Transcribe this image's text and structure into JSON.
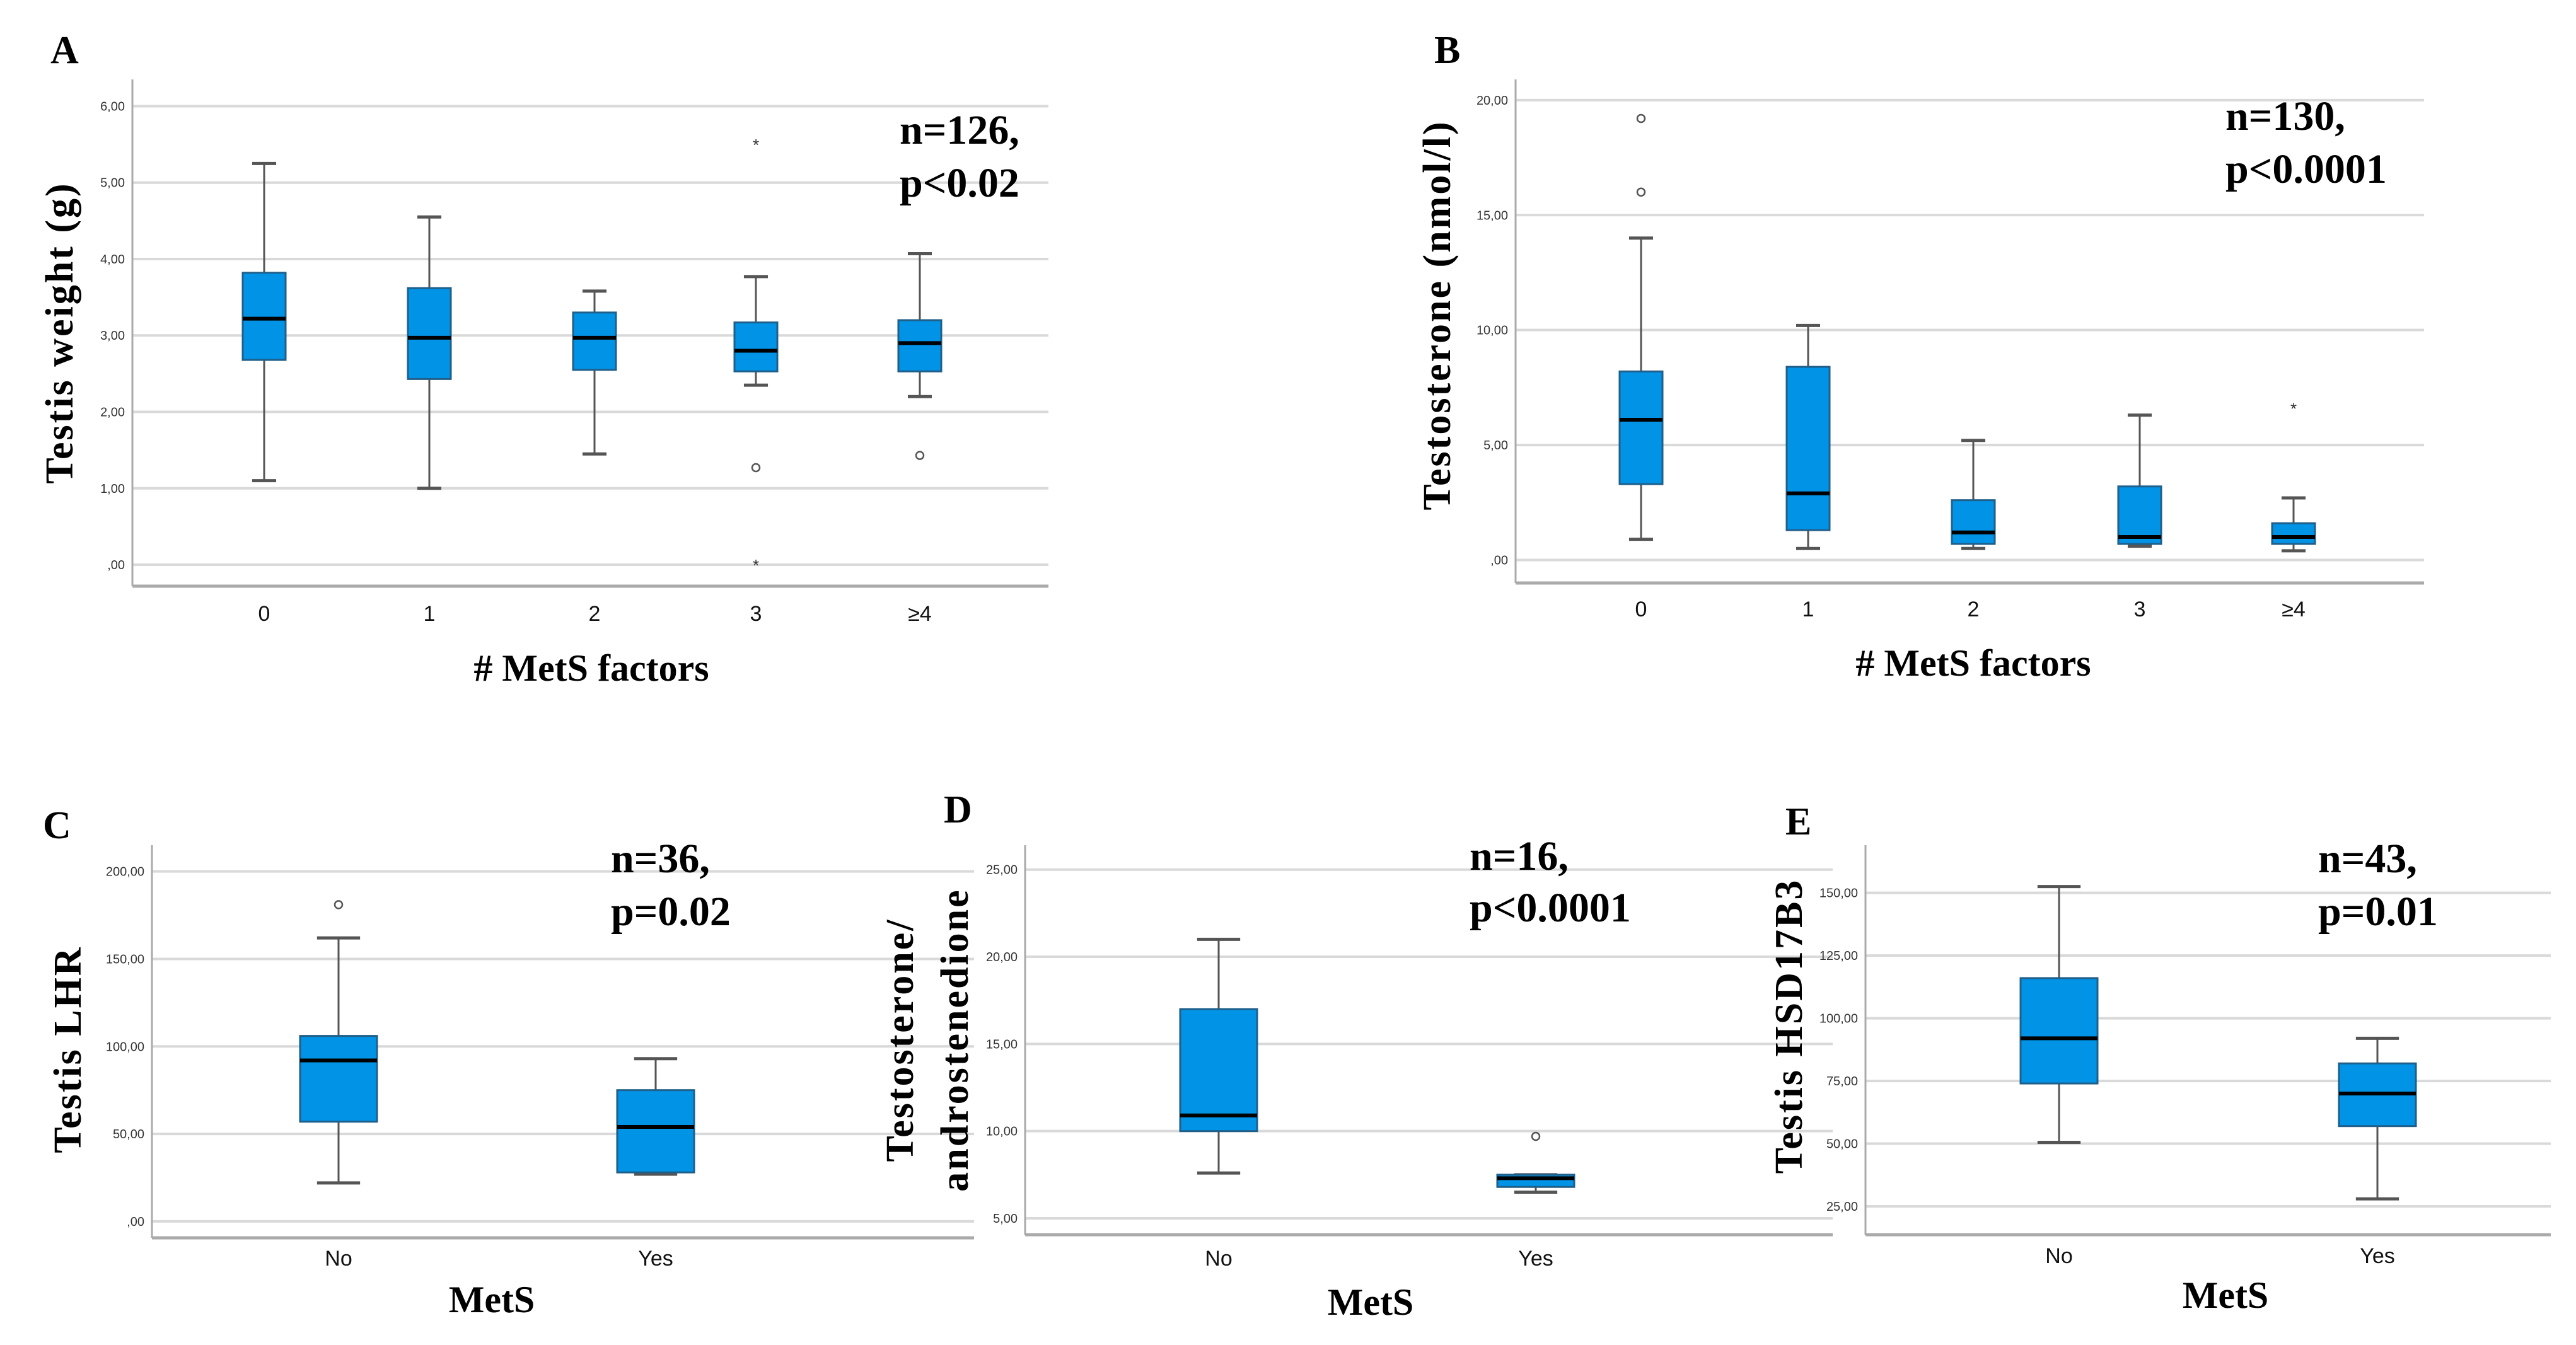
{
  "chart_data": [
    {
      "type": "box",
      "panel": "A",
      "ylabel": "Testis weight (g)",
      "xlabel": "# MetS factors",
      "annotation": [
        "n=126,",
        "p<0.02"
      ],
      "ylim": [
        -0.28,
        6.35
      ],
      "yticks": [
        {
          "v": 6,
          "t": "6,00"
        },
        {
          "v": 5,
          "t": "5,00"
        },
        {
          "v": 4,
          "t": "4,00"
        },
        {
          "v": 3,
          "t": "3,00"
        },
        {
          "v": 2,
          "t": "2,00"
        },
        {
          "v": 1,
          "t": "1,00"
        },
        {
          "v": 0,
          "t": ",00"
        }
      ],
      "categories": [
        "0",
        "1",
        "2",
        "3",
        "≥4"
      ],
      "boxes": [
        {
          "min": 1.1,
          "q1": 2.68,
          "median": 3.22,
          "q3": 3.82,
          "max": 5.25,
          "outliers": [],
          "extremes": []
        },
        {
          "min": 1.0,
          "q1": 2.43,
          "median": 2.97,
          "q3": 3.62,
          "max": 4.55,
          "outliers": [],
          "extremes": []
        },
        {
          "min": 1.45,
          "q1": 2.55,
          "median": 2.97,
          "q3": 3.3,
          "max": 3.58,
          "outliers": [],
          "extremes": []
        },
        {
          "min": 2.35,
          "q1": 2.53,
          "median": 2.8,
          "q3": 3.17,
          "max": 3.77,
          "outliers": [
            1.27
          ],
          "extremes": [
            5.5,
            0.0
          ]
        },
        {
          "min": 2.2,
          "q1": 2.53,
          "median": 2.9,
          "q3": 3.2,
          "max": 4.07,
          "outliers": [
            1.43
          ],
          "extremes": []
        }
      ]
    },
    {
      "type": "box",
      "panel": "B",
      "ylabel": "Testosterone (nmol/l)",
      "xlabel": "# MetS factors",
      "annotation": [
        "n=130,",
        "p<0.0001"
      ],
      "ylim": [
        -1.0,
        20.9
      ],
      "yticks": [
        {
          "v": 20,
          "t": "20,00"
        },
        {
          "v": 15,
          "t": "15,00"
        },
        {
          "v": 10,
          "t": "10,00"
        },
        {
          "v": 5,
          "t": "5,00"
        },
        {
          "v": 0,
          "t": ",00"
        }
      ],
      "categories": [
        "0",
        "1",
        "2",
        "3",
        "≥4"
      ],
      "boxes": [
        {
          "min": 0.9,
          "q1": 3.3,
          "median": 6.1,
          "q3": 8.2,
          "max": 14.0,
          "outliers": [
            19.2,
            16.0
          ],
          "extremes": []
        },
        {
          "min": 0.5,
          "q1": 1.3,
          "median": 2.9,
          "q3": 8.4,
          "max": 10.2,
          "outliers": [],
          "extremes": []
        },
        {
          "min": 0.5,
          "q1": 0.7,
          "median": 1.2,
          "q3": 2.6,
          "max": 5.2,
          "outliers": [],
          "extremes": []
        },
        {
          "min": 0.6,
          "q1": 0.7,
          "median": 1.0,
          "q3": 3.2,
          "max": 6.3,
          "outliers": [],
          "extremes": []
        },
        {
          "min": 0.4,
          "q1": 0.7,
          "median": 1.0,
          "q3": 1.6,
          "max": 2.7,
          "outliers": [],
          "extremes": [
            6.6
          ]
        }
      ]
    },
    {
      "type": "box",
      "panel": "C",
      "ylabel": "Testis LHR",
      "xlabel": "MetS",
      "annotation": [
        "n=36,",
        "p=0.02"
      ],
      "ylim": [
        -9.4,
        215
      ],
      "yticks": [
        {
          "v": 200,
          "t": "200,00"
        },
        {
          "v": 150,
          "t": "150,00"
        },
        {
          "v": 100,
          "t": "100,00"
        },
        {
          "v": 50,
          "t": "50,00"
        },
        {
          "v": 0,
          "t": ",00"
        }
      ],
      "categories": [
        "No",
        "Yes"
      ],
      "boxes": [
        {
          "min": 22,
          "q1": 57,
          "median": 92,
          "q3": 106,
          "max": 162,
          "outliers": [
            181
          ],
          "extremes": []
        },
        {
          "min": 27,
          "q1": 28,
          "median": 54,
          "q3": 75,
          "max": 93,
          "outliers": [],
          "extremes": []
        }
      ]
    },
    {
      "type": "box",
      "panel": "D",
      "ylabel": [
        "Testosterone/",
        "androstenedione"
      ],
      "xlabel": "MetS",
      "annotation": [
        "n=16,",
        "p<0.0001"
      ],
      "ylim": [
        4.06,
        26.4
      ],
      "yticks": [
        {
          "v": 25,
          "t": "25,00"
        },
        {
          "v": 20,
          "t": "20,00"
        },
        {
          "v": 15,
          "t": "15,00"
        },
        {
          "v": 10,
          "t": "10,00"
        },
        {
          "v": 5,
          "t": "5,00"
        }
      ],
      "categories": [
        "No",
        "Yes"
      ],
      "boxes": [
        {
          "min": 7.6,
          "q1": 10.0,
          "median": 10.9,
          "q3": 17.0,
          "max": 21.0,
          "outliers": [],
          "extremes": []
        },
        {
          "min": 6.5,
          "q1": 6.8,
          "median": 7.3,
          "q3": 7.5,
          "max": 7.5,
          "outliers": [
            9.7
          ],
          "extremes": []
        }
      ]
    },
    {
      "type": "box",
      "panel": "E",
      "ylabel": "Testis HSD17B3",
      "xlabel": "MetS",
      "annotation": [
        "n=43,",
        "p=0.01"
      ],
      "ylim": [
        13.7,
        169
      ],
      "yticks": [
        {
          "v": 150,
          "t": "150,00"
        },
        {
          "v": 125,
          "t": "125,00"
        },
        {
          "v": 100,
          "t": "100,00"
        },
        {
          "v": 75,
          "t": "75,00"
        },
        {
          "v": 50,
          "t": "50,00"
        },
        {
          "v": 25,
          "t": "25,00"
        }
      ],
      "categories": [
        "No",
        "Yes"
      ],
      "boxes": [
        {
          "min": 50.5,
          "q1": 74,
          "median": 92,
          "q3": 116,
          "max": 152.5,
          "outliers": [],
          "extremes": []
        },
        {
          "min": 28,
          "q1": 57,
          "median": 70,
          "q3": 82,
          "max": 92,
          "outliers": [],
          "extremes": []
        }
      ]
    }
  ],
  "colors": {
    "box_fill": "#0093e6",
    "box_edge": "#1f5f8a",
    "grid": "#d9d9d9",
    "axis": "#aaaaaa",
    "median": "#000000"
  }
}
